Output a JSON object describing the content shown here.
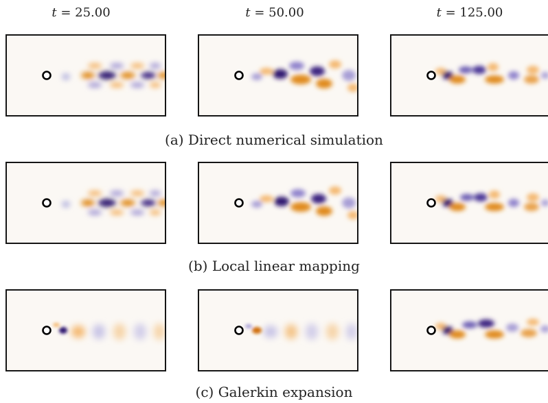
{
  "column_titles": [
    {
      "var": "t",
      "value": "= 25.00"
    },
    {
      "var": "t",
      "value": "= 50.00"
    },
    {
      "var": "t",
      "value": "= 125.00"
    }
  ],
  "rows": [
    {
      "caption": "(a) Direct numerical simulation"
    },
    {
      "caption": "(b) Local linear mapping"
    },
    {
      "caption": "(c) Galerkin expansion"
    }
  ],
  "colors": {
    "positive_vorticity": "#e08a1e",
    "negative_vorticity": "#2e1470",
    "background": "#fbf8f4",
    "cylinder_stroke": "#000000"
  }
}
